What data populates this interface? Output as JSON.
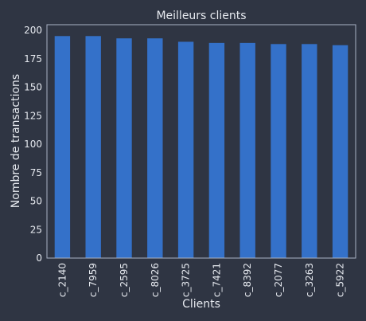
{
  "colors": {
    "background": "#2f3543",
    "bar": "#3471c9",
    "axes_frame": "#aab2c4",
    "text": "#e6e9ef"
  },
  "chart_data": {
    "type": "bar",
    "title": "Meilleurs clients",
    "xlabel": "Clients",
    "ylabel": "Nombre de transactions",
    "categories": [
      "c_2140",
      "c_7959",
      "c_2595",
      "c_8026",
      "c_3725",
      "c_7421",
      "c_8392",
      "c_2077",
      "c_3263",
      "c_5922"
    ],
    "values": [
      195,
      195,
      193,
      193,
      190,
      189,
      189,
      188,
      188,
      187
    ],
    "ylim": [
      0,
      205
    ],
    "yticks": [
      0,
      25,
      50,
      75,
      100,
      125,
      150,
      175,
      200
    ],
    "grid": false,
    "x_tick_rotation": 90
  }
}
